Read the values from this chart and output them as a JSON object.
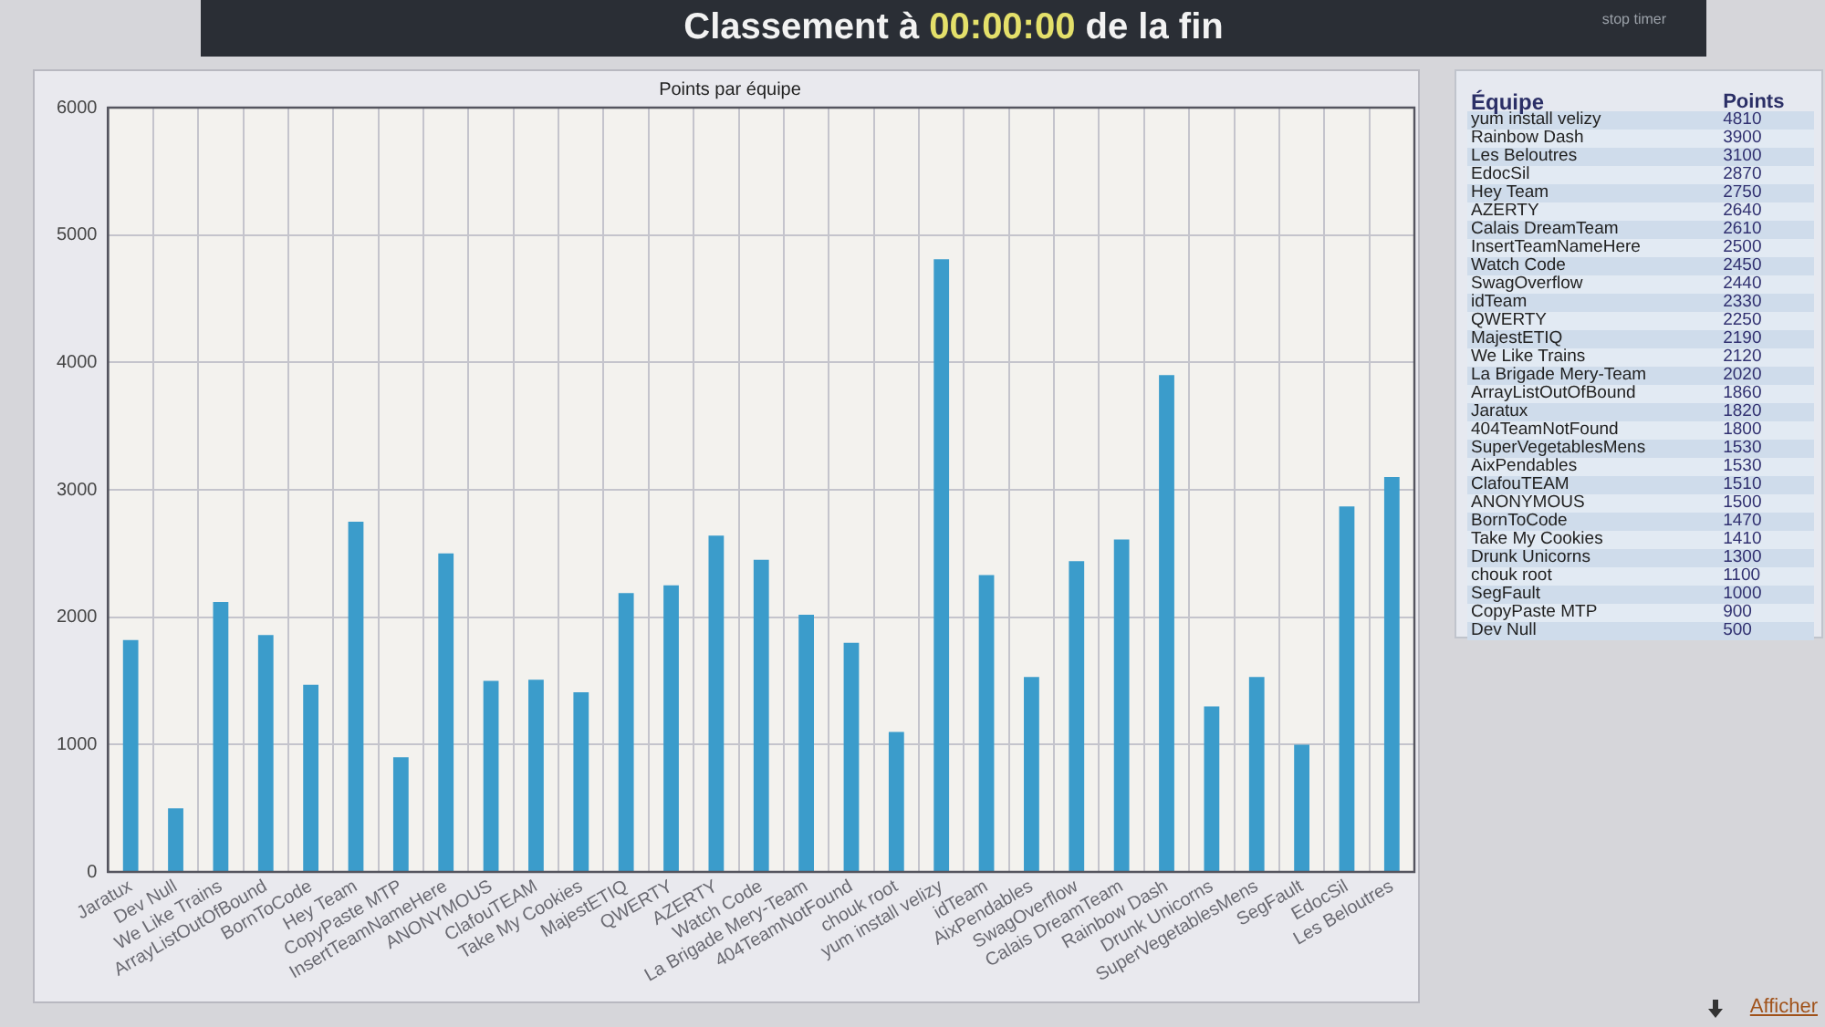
{
  "chart_data": [
    {
      "type": "bar",
      "title": "Classement à 00:00:00 de la fin",
      "subtitle": "Points par équipe",
      "categories": [
        "Jaratux",
        "Dev Null",
        "We Like Trains",
        "ArrayListOutOfBound",
        "BornToCode",
        "Hey Team",
        "CopyPaste MTP",
        "InsertTeamNameHere",
        "ANONYMOUS",
        "ClafouTEAM",
        "Take My Cookies",
        "MajestETIQ",
        "QWERTY",
        "AZERTY",
        "Watch Code",
        "La Brigade Mery-Team",
        "404TeamNotFound",
        "chouk root",
        "yum install velizy",
        "idTeam",
        "AixPendables",
        "SwagOverflow",
        "Calais DreamTeam",
        "Rainbow Dash",
        "Drunk Unicorns",
        "SuperVegetablesMens",
        "SegFault",
        "EdocSil",
        "Les Beloutres"
      ],
      "values": [
        1820,
        500,
        2120,
        1860,
        1470,
        2750,
        900,
        2500,
        1500,
        1510,
        1410,
        2190,
        2250,
        2640,
        2450,
        2020,
        1800,
        1100,
        4810,
        2330,
        1530,
        2440,
        2610,
        3900,
        1300,
        1530,
        1000,
        2870,
        3100
      ],
      "color": "#3b9ccb",
      "ylim": [
        0,
        6000
      ],
      "yticks": [
        0,
        1000,
        2000,
        3000,
        4000,
        5000,
        6000
      ],
      "grid": true,
      "annotations": [
        "stop timer",
        "Afficher"
      ]
    },
    {
      "type": "other",
      "xlabel": "Équipe",
      "ylabel": "Points",
      "data_labels": true,
      "categories": [
        "yum install velizy",
        "Rainbow Dash",
        "Les Beloutres",
        "EdocSil",
        "Hey Team",
        "AZERTY",
        "Calais DreamTeam",
        "InsertTeamNameHere",
        "Watch Code",
        "SwagOverflow",
        "idTeam",
        "QWERTY",
        "MajestETIQ",
        "We Like Trains",
        "La Brigade Mery-Team",
        "ArrayListOutOfBound",
        "Jaratux",
        "404TeamNotFound",
        "SuperVegetablesMens",
        "AixPendables",
        "ClafouTEAM",
        "ANONYMOUS",
        "BornToCode",
        "Take My Cookies",
        "Drunk Unicorns",
        "chouk root",
        "SegFault",
        "CopyPaste MTP",
        "Dev Null"
      ],
      "values": [
        4810,
        3900,
        3100,
        2870,
        2750,
        2640,
        2610,
        2500,
        2450,
        2440,
        2330,
        2250,
        2190,
        2120,
        2020,
        1860,
        1820,
        1800,
        1530,
        1530,
        1510,
        1500,
        1470,
        1410,
        1300,
        1100,
        1000,
        900,
        500
      ]
    }
  ]
}
